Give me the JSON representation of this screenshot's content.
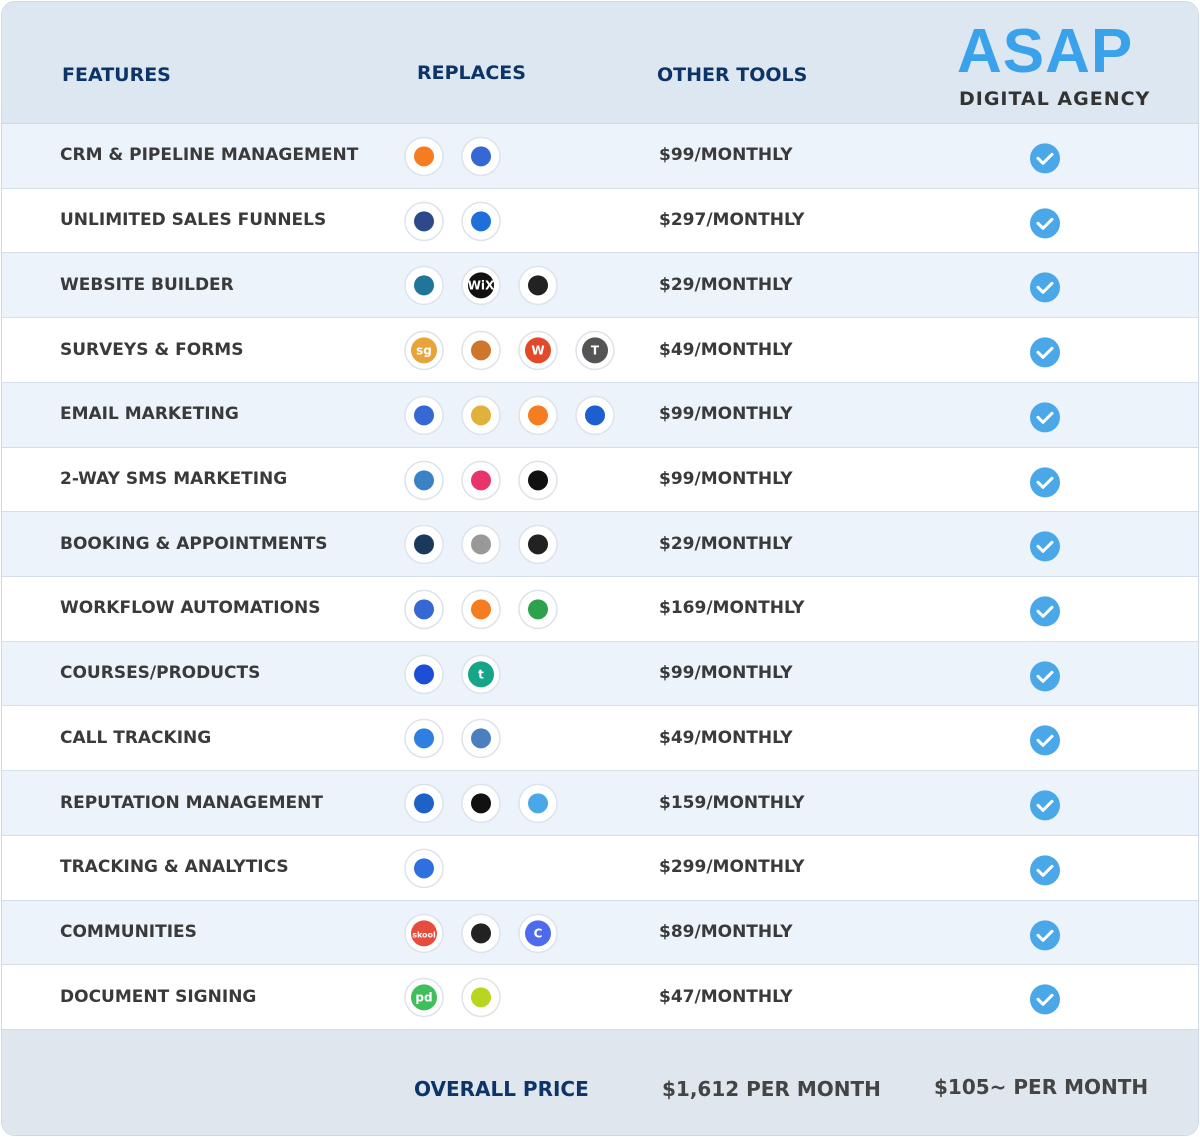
{
  "header": {
    "features": "FEATURES",
    "replaces": "REPLACES",
    "other_tools": "OTHER TOOLS",
    "brand": "ASAP",
    "brand_sub": "DIGITAL AGENCY"
  },
  "rows": [
    {
      "feature": "CRM & PIPELINE MANAGEMENT",
      "price": "$99/MONTHLY",
      "icons": [
        {
          "color": "#f57c20"
        },
        {
          "color": "#3568d4"
        }
      ]
    },
    {
      "feature": "UNLIMITED SALES FUNNELS",
      "price": "$297/MONTHLY",
      "icons": [
        {
          "color": "#2c4a8a"
        },
        {
          "color": "#1e6fd9"
        }
      ]
    },
    {
      "feature": "WEBSITE BUILDER",
      "price": "$29/MONTHLY",
      "icons": [
        {
          "color": "#21759b"
        },
        {
          "color": "#111111",
          "label": "WiX"
        },
        {
          "color": "#222222"
        }
      ]
    },
    {
      "feature": "SURVEYS & FORMS",
      "price": "$49/MONTHLY",
      "icons": [
        {
          "color": "#e8a33b",
          "label": "sg"
        },
        {
          "color": "#d0762a"
        },
        {
          "color": "#e04a2a",
          "label": "W"
        },
        {
          "color": "#555555",
          "label": "T"
        }
      ]
    },
    {
      "feature": "EMAIL MARKETING",
      "price": "$99/MONTHLY",
      "icons": [
        {
          "color": "#3568d4"
        },
        {
          "color": "#e0b23c"
        },
        {
          "color": "#f57c20"
        },
        {
          "color": "#1d5fd1"
        }
      ]
    },
    {
      "feature": "2-WAY SMS MARKETING",
      "price": "$99/MONTHLY",
      "icons": [
        {
          "color": "#3b82c4"
        },
        {
          "color": "#e8336d"
        },
        {
          "color": "#111111"
        }
      ]
    },
    {
      "feature": "BOOKING & APPOINTMENTS",
      "price": "$29/MONTHLY",
      "icons": [
        {
          "color": "#1a3a5c"
        },
        {
          "color": "#999999"
        },
        {
          "color": "#222222"
        }
      ]
    },
    {
      "feature": "WORKFLOW AUTOMATIONS",
      "price": "$169/MONTHLY",
      "icons": [
        {
          "color": "#3568d4"
        },
        {
          "color": "#f57c20"
        },
        {
          "color": "#2ca24c"
        }
      ]
    },
    {
      "feature": "COURSES/PRODUCTS",
      "price": "$99/MONTHLY",
      "icons": [
        {
          "color": "#1d4ed8"
        },
        {
          "color": "#17a589",
          "label": "t"
        }
      ]
    },
    {
      "feature": "CALL TRACKING",
      "price": "$49/MONTHLY",
      "icons": [
        {
          "color": "#2f7fe0"
        },
        {
          "color": "#4a7fc0"
        }
      ]
    },
    {
      "feature": "REPUTATION MANAGEMENT",
      "price": "$159/MONTHLY",
      "icons": [
        {
          "color": "#1e62c8"
        },
        {
          "color": "#111111"
        },
        {
          "color": "#4aa8e8"
        }
      ]
    },
    {
      "feature": "TRACKING & ANALYTICS",
      "price": "$299/MONTHLY",
      "icons": [
        {
          "color": "#2f6fe0"
        }
      ]
    },
    {
      "feature": "COMMUNITIES",
      "price": "$89/MONTHLY",
      "icons": [
        {
          "color": "#e84c3d",
          "label": "skool"
        },
        {
          "color": "#222222"
        },
        {
          "color": "#4f6bed",
          "label": "C"
        }
      ]
    },
    {
      "feature": "DOCUMENT SIGNING",
      "price": "$47/MONTHLY",
      "icons": [
        {
          "color": "#3fbf5a",
          "label": "pd"
        },
        {
          "color": "#b8d61f"
        }
      ]
    }
  ],
  "footer": {
    "label": "OVERALL PRICE",
    "other_total": "$1,612 PER MONTH",
    "asap_total": "$105~ PER MONTH"
  }
}
